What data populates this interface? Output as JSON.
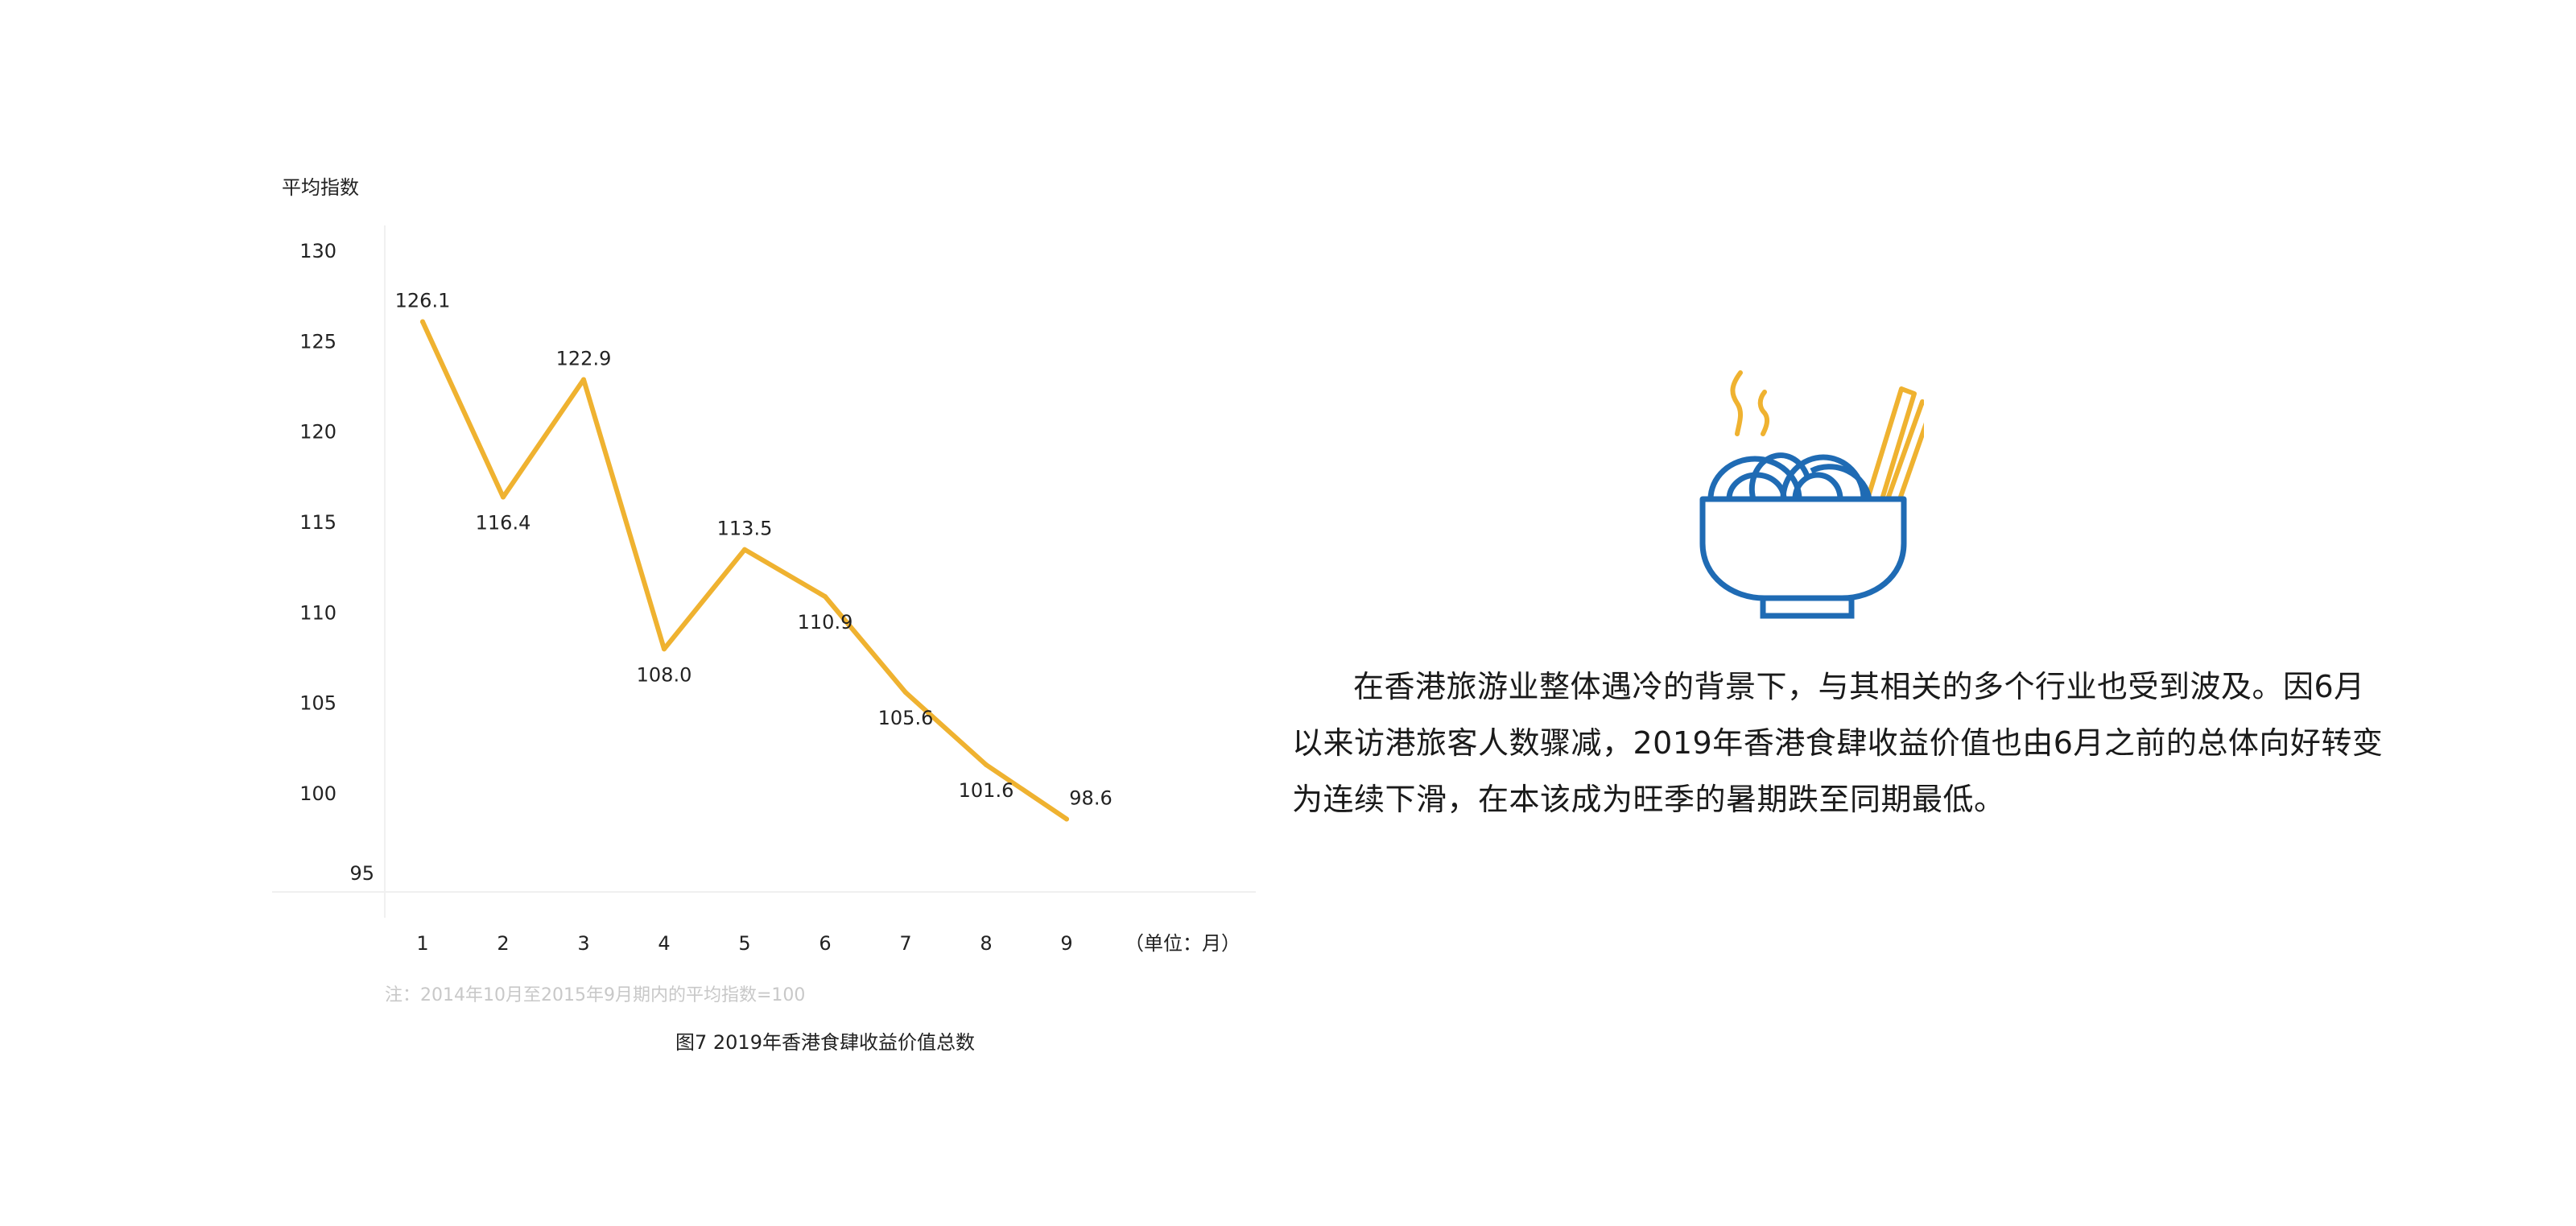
{
  "chart_data": {
    "type": "line",
    "title": "",
    "caption": "图7  2019年香港食肆收益价值总数",
    "ylabel": "平均指数",
    "xlabel": "",
    "x_unit_label": "（单位：月）",
    "note": "注：2014年10月至2015年9月期内的平均指数=100",
    "ylim": [
      95,
      130
    ],
    "yticks": [
      95,
      100,
      105,
      110,
      115,
      120,
      125,
      130
    ],
    "categories": [
      "1",
      "2",
      "3",
      "4",
      "5",
      "6",
      "7",
      "8",
      "9"
    ],
    "values": [
      126.1,
      116.4,
      122.9,
      108.0,
      113.5,
      110.9,
      105.6,
      101.6,
      98.6
    ],
    "data_labels": [
      "126.1",
      "116.4",
      "122.9",
      "108.0",
      "113.5",
      "110.9",
      "105.6",
      "101.6",
      "98.6"
    ],
    "grid": false,
    "legend": "none",
    "line_color": "#EFB230"
  },
  "icon": {
    "name": "noodle-bowl-icon",
    "bowl_color": "#1F6BB4",
    "steam_color": "#EFB230",
    "chopsticks_color": "#EFB230"
  },
  "paragraph": {
    "text": "在香港旅游业整体遇冷的背景下，与其相关的多个行业也受到波及。因6月以来访港旅客人数骤减，2019年香港食肆收益价值也由6月之前的总体向好转变为连续下滑，在本该成为旺季的暑期跌至同期最低。"
  }
}
